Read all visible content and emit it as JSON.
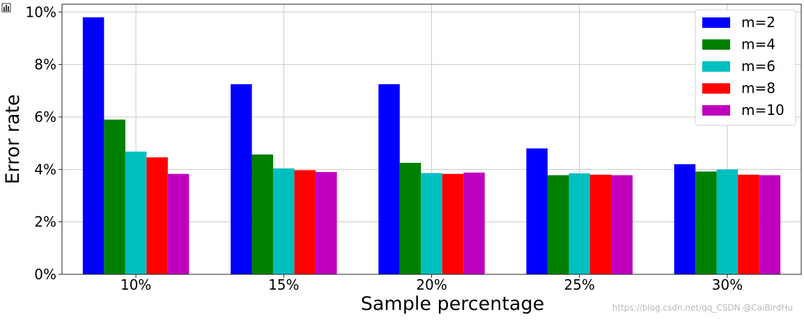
{
  "chart_data": {
    "type": "bar",
    "title": "",
    "xlabel": "Sample percentage",
    "ylabel": "Error rate",
    "categories": [
      "10%",
      "15%",
      "20%",
      "25%",
      "30%"
    ],
    "series": [
      {
        "name": "m=2",
        "color": "#0000ff",
        "values": [
          9.8,
          7.25,
          7.25,
          4.8,
          4.2
        ]
      },
      {
        "name": "m=4",
        "color": "#008000",
        "values": [
          5.9,
          4.57,
          4.25,
          3.78,
          3.92
        ]
      },
      {
        "name": "m=6",
        "color": "#00bfbf",
        "values": [
          4.68,
          4.04,
          3.86,
          3.85,
          4.0
        ]
      },
      {
        "name": "m=8",
        "color": "#ff0000",
        "values": [
          4.46,
          3.97,
          3.83,
          3.8,
          3.8
        ]
      },
      {
        "name": "m=10",
        "color": "#bf00bf",
        "values": [
          3.83,
          3.9,
          3.88,
          3.78,
          3.78
        ]
      }
    ],
    "ylim": [
      0,
      10.3
    ],
    "yticks": [
      0,
      2,
      4,
      6,
      8,
      10
    ],
    "ytick_labels": [
      "0%",
      "2%",
      "4%",
      "6%",
      "8%",
      "10%"
    ],
    "grid": true,
    "legend_position": "top-right"
  },
  "watermark": "https://blog.csdn.net/qq_CSDN @CaiBirdHu"
}
